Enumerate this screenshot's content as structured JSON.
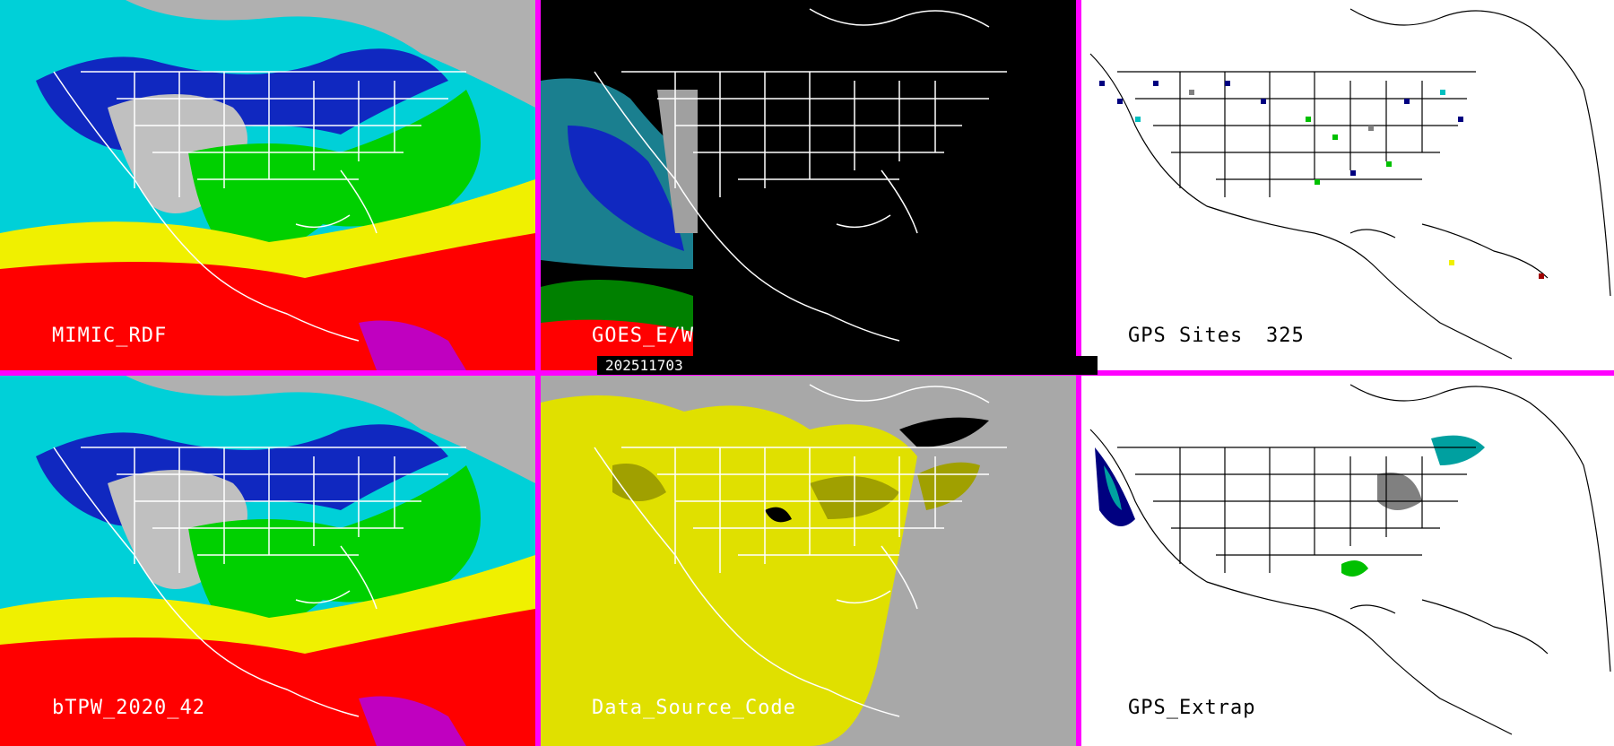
{
  "panels": [
    {
      "id": "mimic",
      "label": "MIMIC_RDF"
    },
    {
      "id": "goes",
      "label": "GOES_E/W"
    },
    {
      "id": "gps",
      "label": "GPS Sites",
      "count": "325"
    },
    {
      "id": "btpw",
      "label": "bTPW_2020_42"
    },
    {
      "id": "dsc",
      "label": "Data_Source_Code"
    },
    {
      "id": "extrap",
      "label": "GPS_Extrap"
    }
  ],
  "timestamp": "202511703",
  "colors": {
    "divider": "#ff00ff",
    "ocean_high": "#ff0000",
    "ocean_mid": "#f0f000",
    "land_green": "#00dd00",
    "cyan": "#00e0e0",
    "dark_blue": "#000080",
    "gray": "#b0b0b0"
  }
}
